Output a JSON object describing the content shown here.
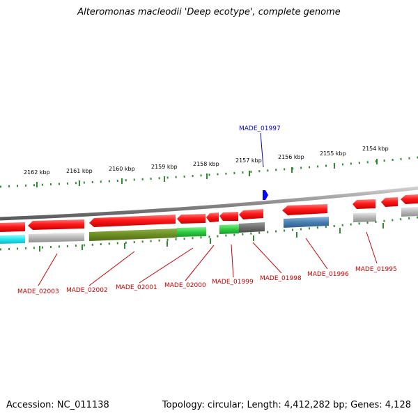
{
  "title": "Alteromonas macleodii 'Deep ecotype', complete genome",
  "footer": {
    "accession": "Accession: NC_011138",
    "topology": "Topology: circular; Length: 4,412,282 bp; Genes: 4,128"
  },
  "colors": {
    "backbone": "#808080",
    "tick": "#2e8b2e",
    "gene_forward": "#ff2020",
    "highlight_label": "#0000cc",
    "gene_label": "#cc0000",
    "cog_cyan": "#22e6f0",
    "cog_gray": "#b0b0b0",
    "cog_olive": "#6b8e23",
    "cog_green": "#2ecc40",
    "cog_darkgray": "#6e6e6e",
    "cog_steelblue": "#4a7fb0",
    "strand_marker": "#0000ff"
  },
  "scale_labels": [
    "2162 kbp",
    "2161 kbp",
    "2160 kbp",
    "2159 kbp",
    "2158 kbp",
    "2157 kbp",
    "2156 kbp",
    "2155 kbp",
    "2154 kbp"
  ],
  "highlighted_gene": "MADE_01997",
  "gene_labels": [
    "MADE_02003",
    "MADE_02002",
    "MADE_02001",
    "MADE_02000",
    "MADE_01999",
    "MADE_01998",
    "MADE_01996",
    "MADE_01995"
  ]
}
